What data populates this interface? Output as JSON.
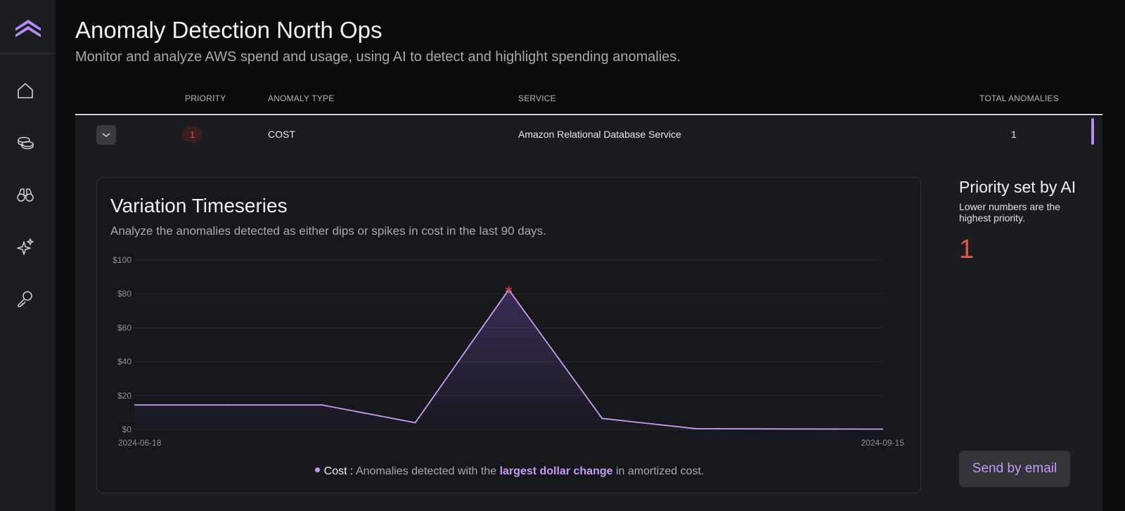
{
  "header": {
    "title": "Anomaly Detection North Ops",
    "subtitle": "Monitor and analyze AWS spend and usage, using AI to detect and highlight spending anomalies."
  },
  "sidebar": {
    "logo": "chevrons-up-logo",
    "items": [
      {
        "icon": "home-icon"
      },
      {
        "icon": "coins-icon"
      },
      {
        "icon": "binoculars-icon"
      },
      {
        "icon": "sparkles-icon"
      },
      {
        "icon": "key-icon"
      }
    ]
  },
  "table": {
    "columns": [
      "PRIORITY",
      "ANOMALY TYPE",
      "SERVICE",
      "TOTAL ANOMALIES"
    ],
    "rows": [
      {
        "priority": "1",
        "type": "COST",
        "service": "Amazon Relational Database Service",
        "total": "1"
      }
    ]
  },
  "detail": {
    "card_title": "Variation Timeseries",
    "card_subtitle": "Analyze the anomalies detected as either dips or spikes in cost in the last 90 days.",
    "legend": {
      "series": "Cost :",
      "text_before": "Anomalies detected with the",
      "highlight": "largest dollar change",
      "text_after": "in amortized cost."
    },
    "priority_panel": {
      "title": "Priority set by AI",
      "description": "Lower numbers are the highest priority.",
      "value": "1"
    },
    "email_button": "Send by email"
  },
  "colors": {
    "accent": "#c89af5",
    "priority_red": "#e0584b",
    "anomaly_marker": "#d8443a"
  },
  "chart_data": {
    "type": "line",
    "x": [
      "2024-06-18",
      "2024-06-30",
      "2024-07-12",
      "2024-07-24",
      "2024-08-05",
      "2024-08-17",
      "2024-08-29",
      "2024-09-10",
      "2024-09-15"
    ],
    "series": [
      {
        "name": "Cost",
        "values": [
          14.5,
          14.5,
          14.5,
          4,
          82.5,
          6.5,
          0.5,
          0.3,
          0.2
        ]
      }
    ],
    "anomalies": [
      {
        "x": "2024-08-05",
        "y": 82.5
      }
    ],
    "y_ticks": [
      "$0",
      "$20",
      "$40",
      "$60",
      "$80",
      "$100"
    ],
    "x_tick_labels": [
      "2024-06-18",
      "2024-09-15"
    ],
    "ylim": [
      0,
      100
    ],
    "grid": true,
    "legend_position": "bottom"
  }
}
